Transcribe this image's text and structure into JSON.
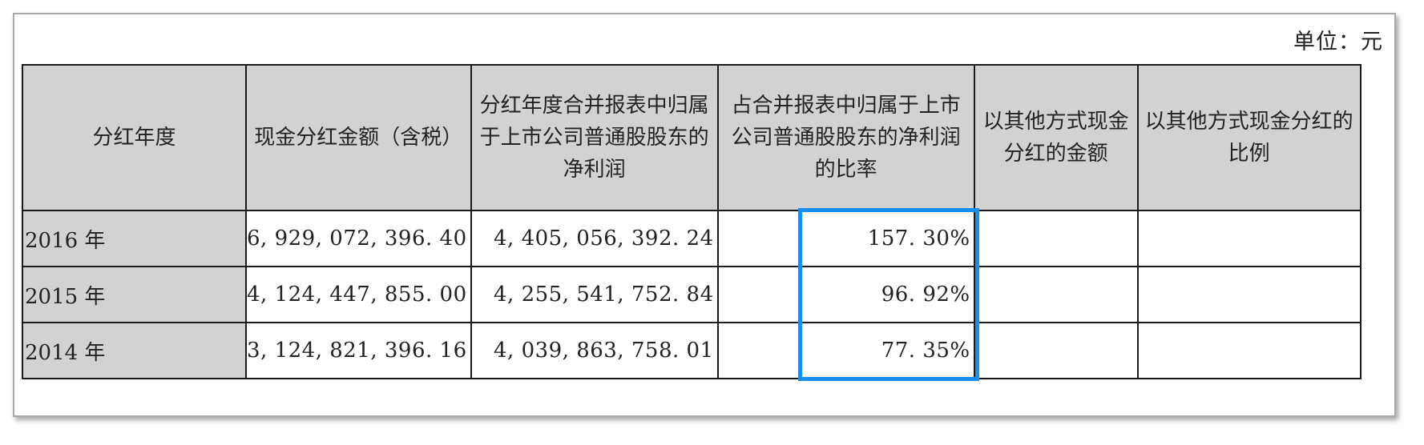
{
  "unit_label": "单位：元",
  "headers": [
    "分红年度",
    "现金分红金额（含税）",
    "分红年度合并报表中归属于上市公司普通股股东的净利润",
    "占合并报表中归属于上市公司普通股股东的净利润的比率",
    "以其他方式现金分红的金额",
    "以其他方式现金分红的比例"
  ],
  "rows": [
    {
      "year": "2016 年",
      "cash_dividend": "6, 929, 072, 396. 40",
      "net_profit": "4, 405, 056, 392. 24",
      "ratio": "157. 30%",
      "other_amount": "",
      "other_ratio": ""
    },
    {
      "year": "2015 年",
      "cash_dividend": "4, 124, 447, 855. 00",
      "net_profit": "4, 255, 541, 752. 84",
      "ratio": "96. 92%",
      "other_amount": "",
      "other_ratio": ""
    },
    {
      "year": "2014 年",
      "cash_dividend": "3, 124, 821, 396. 16",
      "net_profit": "4, 039, 863, 758. 01",
      "ratio": "77. 35%",
      "other_amount": "",
      "other_ratio": ""
    }
  ],
  "highlight_color": "#1a8ef0"
}
